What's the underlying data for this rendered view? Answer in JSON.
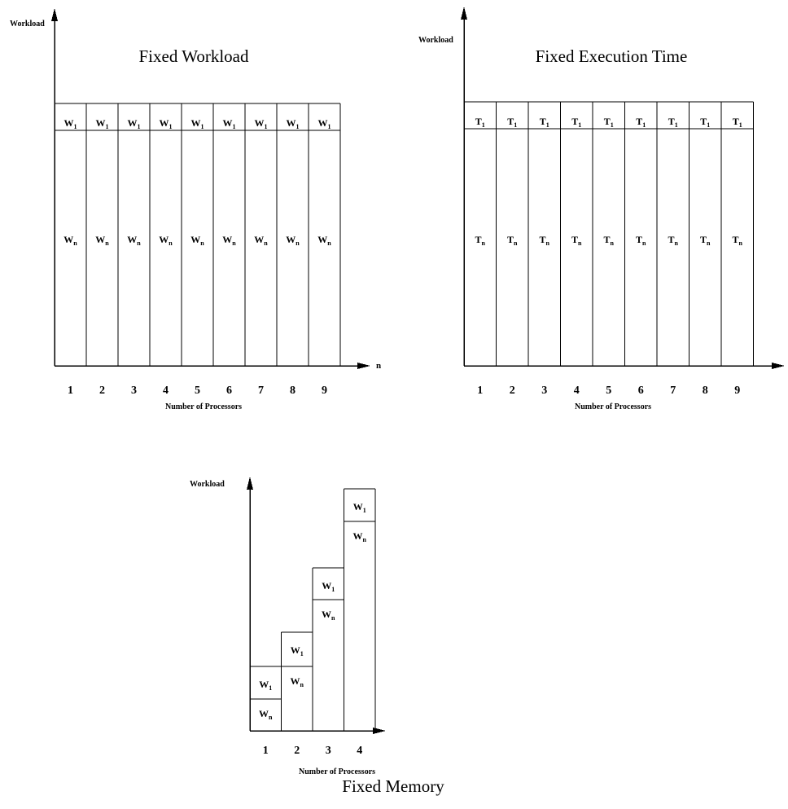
{
  "panels": [
    {
      "id": "fixed-workload",
      "title": "Fixed Workload",
      "ylabel": "Workload",
      "xlabel": "Number of Processors",
      "axis_end": "n",
      "processors": [
        "1",
        "2",
        "3",
        "4",
        "5",
        "6",
        "7",
        "8",
        "9"
      ],
      "top_cell": {
        "base": "W",
        "sub": "1"
      },
      "bottom_cell": {
        "base": "W",
        "sub": "n"
      }
    },
    {
      "id": "fixed-execution-time",
      "title": "Fixed Execution Time",
      "ylabel": "Workload",
      "xlabel": "Number of Processors",
      "axis_end": "",
      "processors": [
        "1",
        "2",
        "3",
        "4",
        "5",
        "6",
        "7",
        "8",
        "9"
      ],
      "top_cell": {
        "base": "T",
        "sub": "1"
      },
      "bottom_cell": {
        "base": "T",
        "sub": "n"
      }
    },
    {
      "id": "fixed-memory",
      "title": "Fixed Memory",
      "ylabel": "Workload",
      "xlabel": "Number of Processors",
      "axis_end": "",
      "processors": [
        "1",
        "2",
        "3",
        "4"
      ],
      "top_cell": {
        "base": "W",
        "sub": "1"
      },
      "bottom_cell": {
        "base": "W",
        "sub": "n"
      }
    }
  ]
}
